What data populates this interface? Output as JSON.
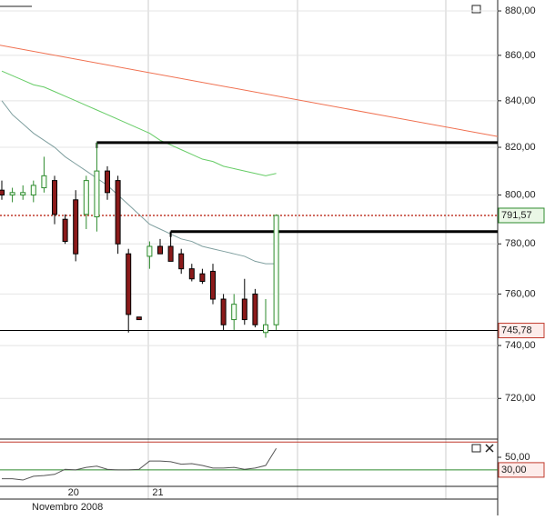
{
  "chart_data": [
    {
      "type": "candlestick",
      "categories": [
        null,
        null,
        null,
        null,
        null,
        null,
        "20",
        null,
        null,
        null,
        null,
        null,
        null,
        null,
        "21",
        null,
        null,
        null,
        null,
        null,
        null,
        null,
        null,
        null,
        null,
        null,
        null
      ],
      "x_label": "Novembro 2008",
      "open": [
        802,
        800,
        800,
        800,
        803,
        806,
        790,
        798,
        792,
        791,
        810,
        806,
        776,
        751,
        775,
        779,
        779,
        776,
        770,
        768,
        769,
        758,
        750,
        758,
        760,
        745,
        748
      ],
      "high": [
        806,
        803,
        804,
        806,
        816,
        808,
        792,
        802,
        808,
        822,
        812,
        808,
        778,
        751,
        781,
        782,
        785,
        778,
        772,
        770,
        772,
        760,
        760,
        766,
        762,
        758,
        792
      ],
      "low": [
        798,
        797,
        798,
        797,
        801,
        788,
        780,
        773,
        786,
        785,
        798,
        776,
        745,
        750,
        770,
        776,
        773,
        768,
        765,
        764,
        756,
        746,
        746,
        748,
        747,
        743,
        746
      ],
      "close": [
        800,
        801,
        801,
        804,
        808,
        792,
        781,
        776,
        806,
        810,
        801,
        780,
        752,
        750,
        779,
        776,
        773,
        770,
        766,
        765,
        758,
        748,
        756,
        750,
        748,
        748,
        791.57
      ],
      "up_color": "#2e8b2e",
      "down_color": "#8b1a1a",
      "lines": [
        {
          "color": "#66cc66",
          "values": [
            853,
            851,
            849,
            847,
            846,
            844,
            842,
            840,
            838,
            836,
            834,
            832,
            830,
            828,
            826,
            823,
            821,
            819,
            817,
            815,
            814,
            812,
            811,
            810,
            809,
            808,
            809
          ]
        },
        {
          "color": "#7f9f9f",
          "values": [
            840,
            834,
            830,
            826,
            823,
            820,
            816,
            813,
            810,
            807,
            804,
            800,
            796,
            792,
            788,
            786,
            784,
            782,
            781,
            779,
            778,
            777,
            776,
            775,
            773,
            772,
            772
          ]
        }
      ],
      "trendline": {
        "color": "#f07050",
        "values": [
          864.5,
          824.6
        ]
      },
      "levels": [
        822,
        785
      ],
      "price_labels": [
        {
          "value": 791.57,
          "label": "791,57",
          "color": "#2e8b2e",
          "fill": "#eaf7e6"
        },
        {
          "value": 745.78,
          "label": "745,78",
          "color": "#c0392b",
          "fill": "#fdecea"
        }
      ],
      "log": true,
      "ylim": [
        705,
        885
      ],
      "yticks": [
        {
          "value": 720,
          "label": "720,00"
        },
        {
          "value": 740,
          "label": "740,00"
        },
        {
          "value": 760,
          "label": "760,00"
        },
        {
          "value": 780,
          "label": "780,00"
        },
        {
          "value": 800,
          "label": "800,00"
        },
        {
          "value": 820,
          "label": "820,00"
        },
        {
          "value": 840,
          "label": "840,00"
        },
        {
          "value": 860,
          "label": "860,00"
        },
        {
          "value": 880,
          "label": "880,00"
        }
      ],
      "grid": true
    },
    {
      "type": "line",
      "values": [
        16,
        16,
        14,
        20,
        21,
        23,
        31,
        30,
        34,
        36,
        31,
        30,
        30,
        31,
        44,
        44,
        43,
        39,
        40,
        37,
        33,
        33,
        34,
        31,
        33,
        37,
        64
      ],
      "color": "#555555",
      "levels": [
        {
          "value": 30,
          "label": "30,00",
          "color": "#2e8b2e"
        },
        {
          "value": 74,
          "color": "#c0392b"
        }
      ],
      "ylim": [
        4,
        73
      ],
      "yticks": [
        {
          "value": 50,
          "label": "50,00"
        }
      ]
    }
  ]
}
